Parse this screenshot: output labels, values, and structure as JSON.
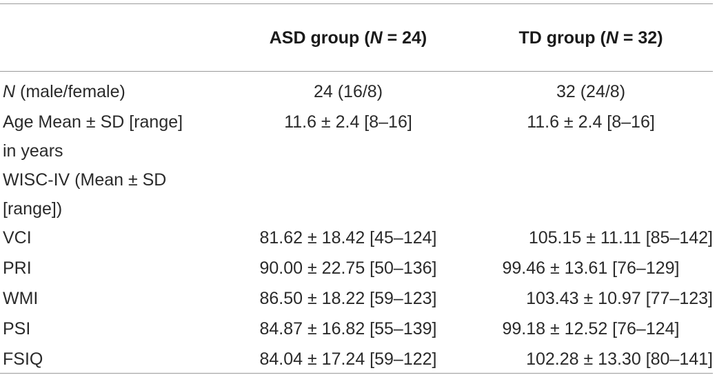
{
  "header": {
    "asd_group": "ASD group (",
    "asd_n_letter": "N",
    "asd_n_value": " = 24)",
    "td_group": "TD group (",
    "td_n_letter": "N",
    "td_n_value": " = 32)"
  },
  "rows": [
    {
      "label_italic": "N",
      "label_rest": " (male/female)",
      "asd": "24 (16/8)",
      "td": "32 (24/8)"
    },
    {
      "label_line1": "Age Mean ± SD [range]",
      "label_line2": "in years",
      "asd": "11.6 ± 2.4 [8–16]",
      "td": "11.6 ± 2.4 [8–16]"
    },
    {
      "label_line1": "WISC-IV (Mean ± SD",
      "label_line2": "[range])",
      "asd": "",
      "td": ""
    },
    {
      "label": "VCI",
      "asd": "81.62 ± 18.42 [45–124]",
      "td": "105.15 ± 11.11 [85–142]"
    },
    {
      "label": "PRI",
      "asd": "90.00 ± 22.75 [50–136]",
      "td": "99.46 ± 13.61 [76–129]"
    },
    {
      "label": "WMI",
      "asd": "86.50 ± 18.22 [59–123]",
      "td": "103.43 ± 10.97 [77–123]"
    },
    {
      "label": "PSI",
      "asd": "84.87 ± 16.82 [55–139]",
      "td": "99.18 ± 12.52 [76–124]"
    },
    {
      "label": "FSIQ",
      "asd": "84.04 ± 17.24 [59–122]",
      "td": "102.28 ± 13.30 [80–141]"
    }
  ]
}
